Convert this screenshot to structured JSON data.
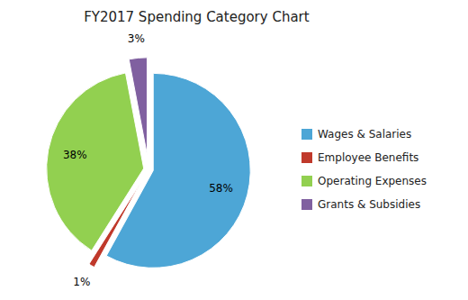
{
  "chart_data": {
    "type": "pie",
    "title": "FY2017 Spending Category Chart",
    "categories": [
      "Wages & Salaries",
      "Employee Benefits",
      "Operating Expenses",
      "Grants & Subsidies"
    ],
    "values": [
      58,
      1,
      38,
      3
    ],
    "value_labels": [
      "58%",
      "1%",
      "38%",
      "3%"
    ],
    "colors": [
      "#4da6d6",
      "#c0392b",
      "#92d050",
      "#8060a0"
    ],
    "data_labels": true,
    "legend": "right"
  }
}
